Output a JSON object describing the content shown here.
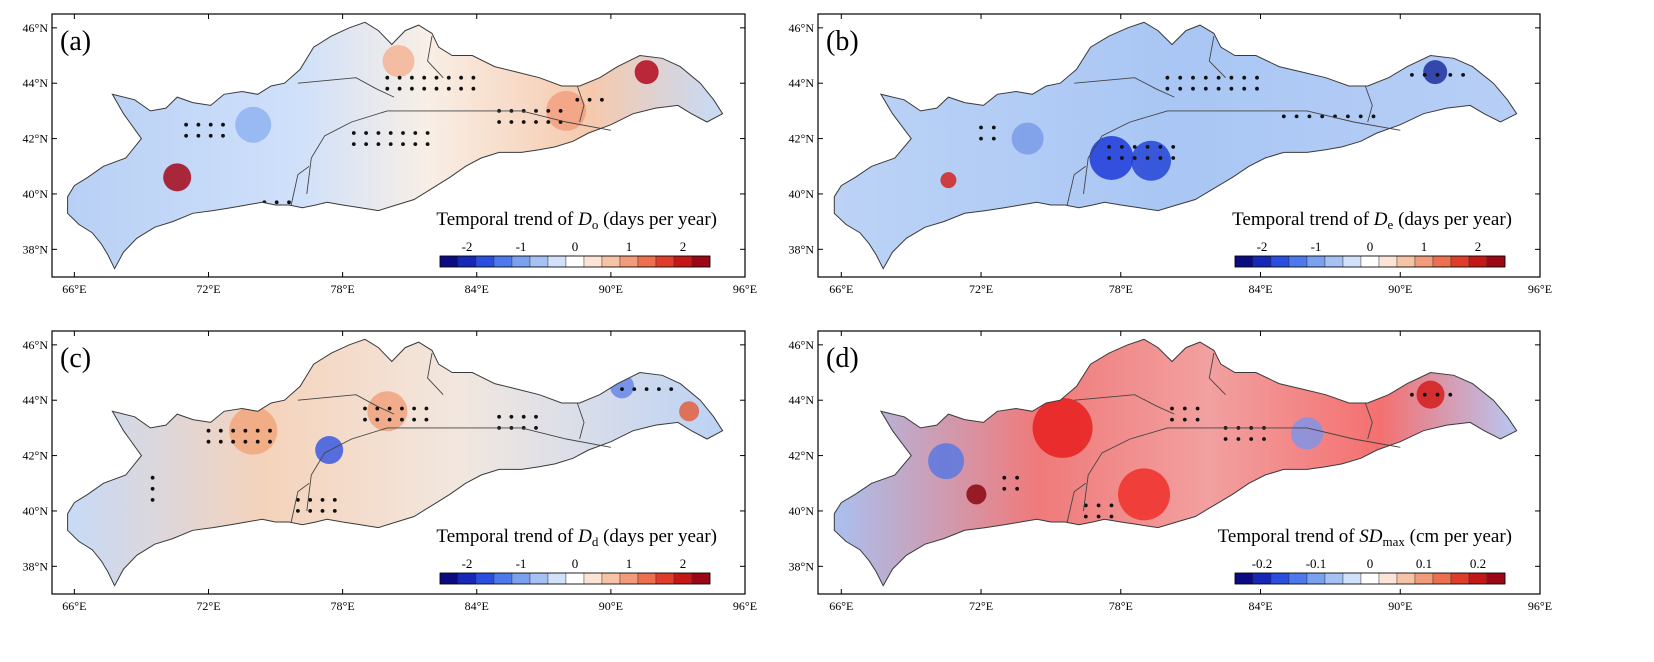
{
  "figure": {
    "lat_ticks": [
      "46°N",
      "44°N",
      "42°N",
      "40°N",
      "38°N"
    ],
    "lon_ticks": [
      "66°E",
      "72°E",
      "78°E",
      "84°E",
      "90°E",
      "96°E"
    ],
    "panels": [
      {
        "label": "(a)",
        "legend": {
          "prefix": "Temporal trend of ",
          "var": "D",
          "sub": "o",
          "unit": " (days per year)"
        },
        "ticks": [
          "-2",
          "-1",
          "0",
          "1",
          "2"
        ],
        "palette": "blue-red"
      },
      {
        "label": "(b)",
        "legend": {
          "prefix": "Temporal trend of ",
          "var": "D",
          "sub": "e",
          "unit": " (days per year)"
        },
        "ticks": [
          "-2",
          "-1",
          "0",
          "1",
          "2"
        ],
        "palette": "blue-red"
      },
      {
        "label": "(c)",
        "legend": {
          "prefix": "Temporal trend of ",
          "var": "D",
          "sub": "d",
          "unit": " (days per year)"
        },
        "ticks": [
          "-2",
          "-1",
          "0",
          "1",
          "2"
        ],
        "palette": "blue-red"
      },
      {
        "label": "(d)",
        "legend": {
          "prefix": "Temporal trend of ",
          "var": "SD",
          "sub": "max",
          "unit": " (cm per year)"
        },
        "ticks": [
          "-0.2",
          "-0.1",
          "0",
          "0.1",
          "0.2"
        ],
        "palette": "blue-red"
      }
    ],
    "colors": {
      "negative_strong": "#08087a",
      "negative": "#2f5ee8",
      "neutral": "#ffffff",
      "positive": "#f0704a",
      "positive_strong": "#a5081a",
      "outline": "#3a3a3a"
    }
  }
}
